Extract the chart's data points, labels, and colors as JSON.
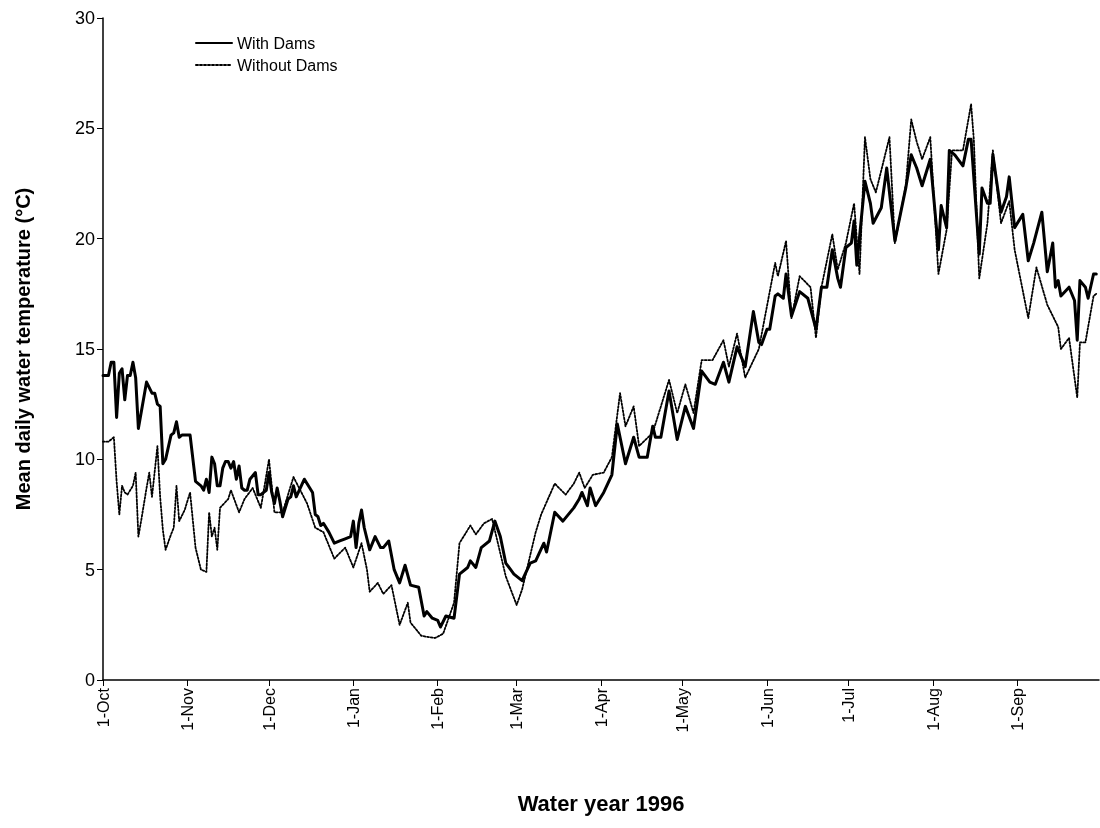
{
  "chart_data": {
    "type": "line",
    "xlabel": "Water year 1996",
    "ylabel": "Mean daily water temperature (°C)",
    "xlim": [
      "1995-10-01",
      "1996-10-01"
    ],
    "xticks": [
      {
        "value": "1995-10-01",
        "label": "1-Oct"
      },
      {
        "value": "1995-11-01",
        "label": "1-Nov"
      },
      {
        "value": "1995-12-01",
        "label": "1-Dec"
      },
      {
        "value": "1996-01-01",
        "label": "1-Jan"
      },
      {
        "value": "1996-02-01",
        "label": "1-Feb"
      },
      {
        "value": "1996-03-01",
        "label": "1-Mar"
      },
      {
        "value": "1996-04-01",
        "label": "1-Apr"
      },
      {
        "value": "1996-05-01",
        "label": "1-May"
      },
      {
        "value": "1996-06-01",
        "label": "1-Jun"
      },
      {
        "value": "1996-07-01",
        "label": "1-Jul"
      },
      {
        "value": "1996-08-01",
        "label": "1-Aug"
      },
      {
        "value": "1996-09-01",
        "label": "1-Sep"
      }
    ],
    "ylim": [
      0,
      30
    ],
    "yticks": [
      0,
      5,
      10,
      15,
      20,
      25,
      30
    ],
    "grid": false,
    "legend": "top left",
    "marker": "none",
    "series": [
      {
        "name": "With Dams",
        "color": "#000000",
        "line_style": "solid",
        "x": [
          "1995-10-01",
          "1995-10-03",
          "1995-10-04",
          "1995-10-05",
          "1995-10-06",
          "1995-10-07",
          "1995-10-08",
          "1995-10-09",
          "1995-10-10",
          "1995-10-11",
          "1995-10-12",
          "1995-10-13",
          "1995-10-14",
          "1995-10-17",
          "1995-10-19",
          "1995-10-20",
          "1995-10-21",
          "1995-10-22",
          "1995-10-23",
          "1995-10-24",
          "1995-10-26",
          "1995-10-27",
          "1995-10-28",
          "1995-10-29",
          "1995-10-30",
          "1995-11-02",
          "1995-11-04",
          "1995-11-06",
          "1995-11-07",
          "1995-11-08",
          "1995-11-09",
          "1995-11-10",
          "1995-11-11",
          "1995-11-12",
          "1995-11-13",
          "1995-11-14",
          "1995-11-15",
          "1995-11-16",
          "1995-11-17",
          "1995-11-18",
          "1995-11-19",
          "1995-11-20",
          "1995-11-21",
          "1995-11-22",
          "1995-11-23",
          "1995-11-24",
          "1995-11-26",
          "1995-11-27",
          "1995-11-28",
          "1995-11-30",
          "1995-12-01",
          "1995-12-02",
          "1995-12-03",
          "1995-12-04",
          "1995-12-05",
          "1995-12-06",
          "1995-12-08",
          "1995-12-09",
          "1995-12-10",
          "1995-12-11",
          "1995-12-14",
          "1995-12-17",
          "1995-12-18",
          "1995-12-19",
          "1995-12-20",
          "1995-12-21",
          "1995-12-23",
          "1995-12-25",
          "1995-12-27",
          "1995-12-29",
          "1995-12-31",
          "1996-01-01",
          "1996-01-02",
          "1996-01-03",
          "1996-01-04",
          "1996-01-05",
          "1996-01-07",
          "1996-01-09",
          "1996-01-11",
          "1996-01-12",
          "1996-01-14",
          "1996-01-16",
          "1996-01-18",
          "1996-01-20",
          "1996-01-22",
          "1996-01-25",
          "1996-01-27",
          "1996-01-28",
          "1996-01-30",
          "1996-02-01",
          "1996-02-02",
          "1996-02-04",
          "1996-02-07",
          "1996-02-09",
          "1996-02-12",
          "1996-02-13",
          "1996-02-15",
          "1996-02-17",
          "1996-02-20",
          "1996-02-22",
          "1996-02-24",
          "1996-02-26",
          "1996-02-29",
          "1996-03-03",
          "1996-03-06",
          "1996-03-08",
          "1996-03-11",
          "1996-03-12",
          "1996-03-15",
          "1996-03-18",
          "1996-03-22",
          "1996-03-24",
          "1996-03-25",
          "1996-03-27",
          "1996-03-28",
          "1996-03-30",
          "1996-04-02",
          "1996-04-05",
          "1996-04-07",
          "1996-04-10",
          "1996-04-13",
          "1996-04-15",
          "1996-04-18",
          "1996-04-20",
          "1996-04-21",
          "1996-04-23",
          "1996-04-26",
          "1996-04-29",
          "1996-05-02",
          "1996-05-05",
          "1996-05-08",
          "1996-05-11",
          "1996-05-13",
          "1996-05-16",
          "1996-05-18",
          "1996-05-21",
          "1996-05-24",
          "1996-05-27",
          "1996-05-29",
          "1996-05-30",
          "1996-06-01",
          "1996-06-02",
          "1996-06-04",
          "1996-06-05",
          "1996-06-07",
          "1996-06-08",
          "1996-06-10",
          "1996-06-13",
          "1996-06-16",
          "1996-06-19",
          "1996-06-21",
          "1996-06-23",
          "1996-06-25",
          "1996-06-27",
          "1996-06-28",
          "1996-06-30",
          "1996-07-02",
          "1996-07-03",
          "1996-07-04",
          "1996-07-07",
          "1996-07-09",
          "1996-07-10",
          "1996-07-13",
          "1996-07-15",
          "1996-07-18",
          "1996-07-22",
          "1996-07-24",
          "1996-07-26",
          "1996-07-28",
          "1996-07-31",
          "1996-08-03",
          "1996-08-04",
          "1996-08-06",
          "1996-08-07",
          "1996-08-09",
          "1996-08-12",
          "1996-08-14",
          "1996-08-15",
          "1996-08-18",
          "1996-08-19",
          "1996-08-21",
          "1996-08-22",
          "1996-08-23",
          "1996-08-26",
          "1996-08-28",
          "1996-08-29",
          "1996-08-31",
          "1996-09-03",
          "1996-09-05",
          "1996-09-07",
          "1996-09-10",
          "1996-09-12",
          "1996-09-14",
          "1996-09-15",
          "1996-09-16",
          "1996-09-17",
          "1996-09-20",
          "1996-09-22",
          "1996-09-23",
          "1996-09-24",
          "1996-09-26",
          "1996-09-27",
          "1996-09-29",
          "1996-09-30"
        ],
        "values": [
          13.8,
          13.8,
          14.4,
          14.4,
          11.9,
          13.9,
          14.1,
          12.7,
          13.8,
          13.8,
          14.4,
          13.7,
          11.4,
          13.5,
          13.0,
          13.0,
          12.5,
          12.4,
          9.8,
          10.0,
          11.1,
          11.2,
          11.7,
          11.0,
          11.1,
          11.1,
          9.0,
          8.8,
          8.6,
          9.1,
          8.5,
          10.1,
          9.8,
          8.8,
          8.8,
          9.6,
          9.9,
          9.9,
          9.6,
          9.9,
          9.1,
          9.7,
          8.7,
          8.6,
          8.6,
          9.1,
          9.4,
          8.4,
          8.4,
          8.6,
          9.4,
          8.5,
          8.0,
          8.7,
          8.1,
          7.4,
          8.2,
          8.3,
          8.8,
          8.3,
          9.1,
          8.5,
          7.5,
          7.4,
          7.0,
          7.1,
          6.7,
          6.2,
          6.3,
          6.4,
          6.5,
          7.2,
          6.0,
          7.1,
          7.7,
          6.9,
          5.9,
          6.5,
          6.0,
          6.0,
          6.3,
          5.0,
          4.4,
          5.2,
          4.3,
          4.2,
          2.9,
          3.1,
          2.8,
          2.7,
          2.4,
          2.9,
          2.8,
          4.8,
          5.1,
          5.4,
          5.1,
          6.0,
          6.3,
          7.2,
          6.5,
          5.3,
          4.8,
          4.5,
          5.3,
          5.4,
          6.2,
          5.8,
          7.6,
          7.2,
          7.8,
          8.2,
          8.5,
          7.9,
          8.7,
          7.9,
          8.5,
          9.3,
          11.6,
          9.8,
          11.0,
          10.1,
          10.1,
          11.5,
          11.0,
          11.0,
          13.1,
          10.9,
          12.4,
          11.4,
          14.0,
          13.5,
          13.4,
          14.4,
          13.5,
          15.1,
          14.2,
          16.7,
          15.3,
          15.2,
          15.9,
          15.9,
          17.4,
          17.5,
          17.3,
          18.4,
          16.5,
          17.6,
          17.3,
          15.9,
          17.8,
          17.8,
          19.5,
          18.2,
          17.8,
          19.6,
          19.8,
          20.8,
          18.8,
          22.6,
          21.6,
          20.7,
          21.4,
          23.2,
          19.9,
          22.3,
          23.8,
          23.2,
          22.4,
          23.6,
          19.5,
          21.5,
          20.5,
          24.0,
          23.8,
          23.3,
          24.5,
          24.5,
          19.3,
          22.3,
          21.6,
          21.6,
          23.8,
          21.2,
          21.9,
          22.8,
          20.5,
          21.1,
          19.0,
          19.8,
          21.2,
          18.5,
          19.8,
          17.8,
          18.1,
          17.4,
          17.8,
          17.2,
          15.4,
          18.1,
          17.8,
          17.3,
          18.4,
          18.4
        ]
      },
      {
        "name": "Without Dams",
        "color": "#000000",
        "line_style": "dotted",
        "x": [
          "1995-10-01",
          "1995-10-03",
          "1995-10-05",
          "1995-10-06",
          "1995-10-07",
          "1995-10-08",
          "1995-10-09",
          "1995-10-10",
          "1995-10-12",
          "1995-10-13",
          "1995-10-14",
          "1995-10-15",
          "1995-10-17",
          "1995-10-18",
          "1995-10-19",
          "1995-10-21",
          "1995-10-22",
          "1995-10-23",
          "1995-10-24",
          "1995-10-26",
          "1995-10-27",
          "1995-10-28",
          "1995-10-29",
          "1995-10-31",
          "1995-11-02",
          "1995-11-04",
          "1995-11-06",
          "1995-11-08",
          "1995-11-09",
          "1995-11-10",
          "1995-11-11",
          "1995-11-12",
          "1995-11-13",
          "1995-11-16",
          "1995-11-17",
          "1995-11-20",
          "1995-11-22",
          "1995-11-25",
          "1995-11-28",
          "1995-12-01",
          "1995-12-03",
          "1995-12-06",
          "1995-12-10",
          "1995-12-15",
          "1995-12-18",
          "1995-12-21",
          "1995-12-25",
          "1995-12-29",
          "1996-01-01",
          "1996-01-04",
          "1996-01-06",
          "1996-01-07",
          "1996-01-10",
          "1996-01-12",
          "1996-01-15",
          "1996-01-18",
          "1996-01-21",
          "1996-01-22",
          "1996-01-26",
          "1996-01-31",
          "1996-02-03",
          "1996-02-07",
          "1996-02-09",
          "1996-02-13",
          "1996-02-15",
          "1996-02-18",
          "1996-02-21",
          "1996-02-26",
          "1996-03-01",
          "1996-03-03",
          "1996-03-08",
          "1996-03-10",
          "1996-03-15",
          "1996-03-19",
          "1996-03-22",
          "1996-03-24",
          "1996-03-26",
          "1996-03-29",
          "1996-04-02",
          "1996-04-05",
          "1996-04-08",
          "1996-04-10",
          "1996-04-13",
          "1996-04-15",
          "1996-04-20",
          "1996-04-26",
          "1996-04-29",
          "1996-05-02",
          "1996-05-05",
          "1996-05-08",
          "1996-05-12",
          "1996-05-16",
          "1996-05-18",
          "1996-05-21",
          "1996-05-24",
          "1996-05-29",
          "1996-06-04",
          "1996-06-05",
          "1996-06-08",
          "1996-06-10",
          "1996-06-13",
          "1996-06-17",
          "1996-06-19",
          "1996-06-21",
          "1996-06-25",
          "1996-06-27",
          "1996-06-30",
          "1996-07-03",
          "1996-07-05",
          "1996-07-07",
          "1996-07-09",
          "1996-07-11",
          "1996-07-16",
          "1996-07-18",
          "1996-07-22",
          "1996-07-24",
          "1996-07-26",
          "1996-07-28",
          "1996-07-31",
          "1996-08-03",
          "1996-08-06",
          "1996-08-08",
          "1996-08-12",
          "1996-08-15",
          "1996-08-16",
          "1996-08-18",
          "1996-08-21",
          "1996-08-23",
          "1996-08-26",
          "1996-08-29",
          "1996-08-31",
          "1996-09-05",
          "1996-09-08",
          "1996-09-12",
          "1996-09-16",
          "1996-09-17",
          "1996-09-20",
          "1996-09-23",
          "1996-09-24",
          "1996-09-26",
          "1996-09-29",
          "1996-09-30"
        ],
        "values": [
          10.8,
          10.8,
          11.0,
          9.0,
          7.5,
          8.8,
          8.5,
          8.4,
          8.8,
          9.4,
          6.5,
          7.2,
          8.7,
          9.4,
          8.3,
          10.6,
          8.3,
          6.8,
          5.9,
          6.6,
          6.9,
          8.8,
          7.2,
          7.7,
          8.5,
          6.0,
          5.0,
          4.9,
          7.6,
          6.5,
          6.9,
          5.9,
          7.8,
          8.2,
          8.6,
          7.6,
          8.2,
          8.7,
          7.8,
          10.0,
          7.6,
          7.6,
          9.2,
          8.0,
          6.9,
          6.7,
          5.5,
          6.0,
          5.1,
          6.2,
          5.0,
          4.0,
          4.4,
          3.9,
          4.3,
          2.5,
          3.5,
          2.6,
          2.0,
          1.9,
          2.1,
          3.5,
          6.2,
          7.0,
          6.6,
          7.1,
          7.3,
          4.7,
          3.4,
          4.1,
          6.7,
          7.5,
          8.9,
          8.4,
          8.9,
          9.4,
          8.7,
          9.3,
          9.4,
          10.1,
          13.0,
          11.5,
          12.4,
          10.6,
          11.2,
          13.6,
          12.1,
          13.4,
          12.1,
          14.5,
          14.5,
          15.4,
          14.2,
          15.7,
          13.7,
          15.0,
          18.9,
          18.3,
          19.9,
          16.4,
          18.3,
          17.8,
          15.5,
          17.8,
          20.2,
          18.6,
          19.8,
          21.6,
          18.4,
          24.6,
          22.7,
          22.1,
          24.6,
          19.8,
          22.4,
          25.4,
          24.4,
          23.6,
          24.6,
          18.4,
          20.4,
          24.0,
          24.0,
          26.1,
          24.5,
          18.2,
          20.7,
          24.0,
          20.7,
          21.7,
          19.5,
          16.4,
          18.7,
          17.0,
          16.0,
          15.0,
          15.5,
          12.8,
          15.3,
          15.3,
          17.4,
          17.5
        ]
      }
    ]
  }
}
